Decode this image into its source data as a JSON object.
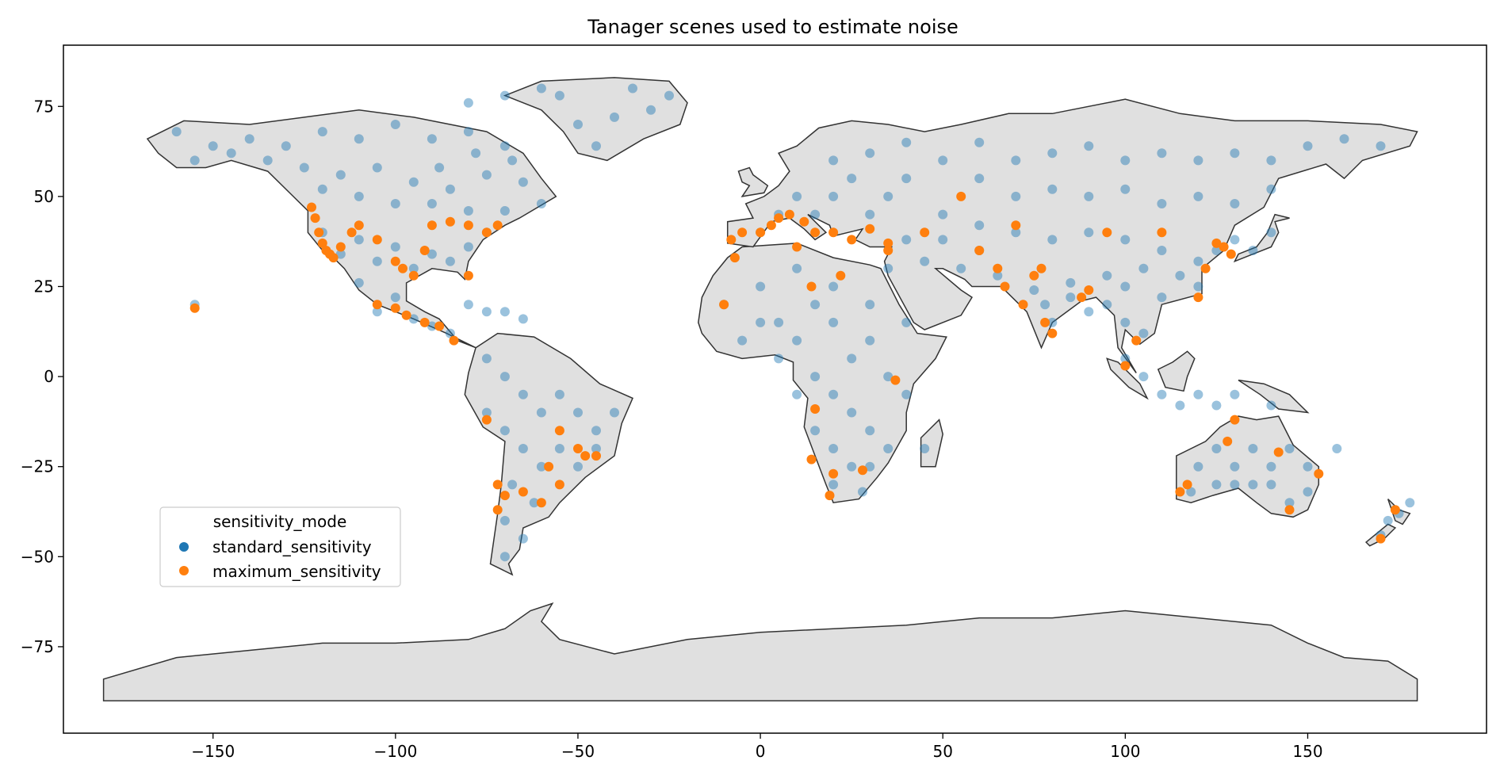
{
  "figure": {
    "title": "Tanager scenes used to estimate noise"
  },
  "chart_data": {
    "type": "scatter",
    "title": "Tanager scenes used to estimate noise",
    "xlabel": "",
    "ylabel": "",
    "xlim": [
      -191,
      199
    ],
    "ylim": [
      -99,
      92
    ],
    "x_ticks": [
      -150,
      -100,
      -50,
      0,
      50,
      100,
      150
    ],
    "y_ticks": [
      75,
      50,
      25,
      0,
      -25,
      -50,
      -75
    ],
    "x_tick_labels": [
      "−150",
      "−100",
      "−50",
      "0",
      "50",
      "100",
      "150"
    ],
    "y_tick_labels": [
      "75",
      "50",
      "25",
      "0",
      "−25",
      "−50",
      "−75"
    ],
    "grid": false,
    "basemap": {
      "fill": "#e0e0e0",
      "edge": "#333333"
    },
    "legend": {
      "title": "sensitivity_mode",
      "placement": "lower-left",
      "entries": [
        {
          "label": "standard_sensitivity",
          "color": "#1f77b4"
        },
        {
          "label": "maximum_sensitivity",
          "color": "#ff7f0e"
        }
      ]
    },
    "series": [
      {
        "name": "standard_sensitivity",
        "color": "#1f77b4",
        "opacity": 0.45,
        "points": [
          [
            -160,
            68
          ],
          [
            -150,
            64
          ],
          [
            -140,
            66
          ],
          [
            -130,
            64
          ],
          [
            -120,
            68
          ],
          [
            -110,
            66
          ],
          [
            -100,
            70
          ],
          [
            -90,
            66
          ],
          [
            -80,
            68
          ],
          [
            -70,
            64
          ],
          [
            -125,
            58
          ],
          [
            -115,
            56
          ],
          [
            -105,
            58
          ],
          [
            -95,
            54
          ],
          [
            -85,
            52
          ],
          [
            -75,
            56
          ],
          [
            -65,
            54
          ],
          [
            -135,
            60
          ],
          [
            -145,
            62
          ],
          [
            -155,
            60
          ],
          [
            -120,
            52
          ],
          [
            -110,
            50
          ],
          [
            -100,
            48
          ],
          [
            -90,
            48
          ],
          [
            -80,
            46
          ],
          [
            -70,
            46
          ],
          [
            -60,
            48
          ],
          [
            -68,
            60
          ],
          [
            -78,
            62
          ],
          [
            -88,
            58
          ],
          [
            -50,
            70
          ],
          [
            -40,
            72
          ],
          [
            -30,
            74
          ],
          [
            -45,
            64
          ],
          [
            -35,
            80
          ],
          [
            -55,
            78
          ],
          [
            -25,
            78
          ],
          [
            -60,
            80
          ],
          [
            -70,
            78
          ],
          [
            -80,
            76
          ],
          [
            -120,
            40
          ],
          [
            -110,
            38
          ],
          [
            -100,
            36
          ],
          [
            -90,
            34
          ],
          [
            -80,
            36
          ],
          [
            -115,
            34
          ],
          [
            -105,
            32
          ],
          [
            -95,
            30
          ],
          [
            -85,
            32
          ],
          [
            -75,
            40
          ],
          [
            -110,
            26
          ],
          [
            -100,
            22
          ],
          [
            -105,
            18
          ],
          [
            -95,
            16
          ],
          [
            -90,
            14
          ],
          [
            -85,
            12
          ],
          [
            -80,
            20
          ],
          [
            -75,
            18
          ],
          [
            -70,
            18
          ],
          [
            -65,
            16
          ],
          [
            -75,
            5
          ],
          [
            -70,
            0
          ],
          [
            -65,
            -5
          ],
          [
            -60,
            -10
          ],
          [
            -55,
            -5
          ],
          [
            -50,
            -10
          ],
          [
            -45,
            -15
          ],
          [
            -40,
            -10
          ],
          [
            -65,
            -20
          ],
          [
            -60,
            -25
          ],
          [
            -55,
            -20
          ],
          [
            -50,
            -25
          ],
          [
            -45,
            -20
          ],
          [
            -70,
            -15
          ],
          [
            -75,
            -10
          ],
          [
            -68,
            -30
          ],
          [
            -62,
            -35
          ],
          [
            -70,
            -40
          ],
          [
            -65,
            -45
          ],
          [
            -70,
            -50
          ],
          [
            -10,
            20
          ],
          [
            0,
            25
          ],
          [
            10,
            30
          ],
          [
            20,
            25
          ],
          [
            30,
            20
          ],
          [
            0,
            15
          ],
          [
            10,
            10
          ],
          [
            20,
            15
          ],
          [
            30,
            10
          ],
          [
            40,
            15
          ],
          [
            -5,
            10
          ],
          [
            5,
            5
          ],
          [
            15,
            0
          ],
          [
            25,
            5
          ],
          [
            35,
            0
          ],
          [
            20,
            -5
          ],
          [
            25,
            -10
          ],
          [
            30,
            -15
          ],
          [
            20,
            -20
          ],
          [
            25,
            -25
          ],
          [
            30,
            -25
          ],
          [
            20,
            -30
          ],
          [
            28,
            -32
          ],
          [
            15,
            -15
          ],
          [
            35,
            -20
          ],
          [
            45,
            -20
          ],
          [
            40,
            -5
          ],
          [
            10,
            -5
          ],
          [
            5,
            15
          ],
          [
            15,
            20
          ],
          [
            0,
            40
          ],
          [
            5,
            45
          ],
          [
            10,
            50
          ],
          [
            20,
            50
          ],
          [
            25,
            55
          ],
          [
            15,
            45
          ],
          [
            30,
            45
          ],
          [
            35,
            50
          ],
          [
            40,
            55
          ],
          [
            20,
            60
          ],
          [
            30,
            62
          ],
          [
            40,
            65
          ],
          [
            50,
            60
          ],
          [
            60,
            65
          ],
          [
            70,
            60
          ],
          [
            80,
            62
          ],
          [
            90,
            64
          ],
          [
            100,
            60
          ],
          [
            110,
            62
          ],
          [
            120,
            60
          ],
          [
            130,
            62
          ],
          [
            140,
            60
          ],
          [
            150,
            64
          ],
          [
            160,
            66
          ],
          [
            170,
            64
          ],
          [
            60,
            55
          ],
          [
            70,
            50
          ],
          [
            80,
            52
          ],
          [
            90,
            50
          ],
          [
            100,
            52
          ],
          [
            110,
            48
          ],
          [
            120,
            50
          ],
          [
            130,
            48
          ],
          [
            140,
            52
          ],
          [
            50,
            45
          ],
          [
            60,
            42
          ],
          [
            70,
            40
          ],
          [
            80,
            38
          ],
          [
            90,
            40
          ],
          [
            100,
            38
          ],
          [
            110,
            35
          ],
          [
            120,
            32
          ],
          [
            115,
            28
          ],
          [
            105,
            30
          ],
          [
            95,
            28
          ],
          [
            85,
            26
          ],
          [
            75,
            24
          ],
          [
            65,
            28
          ],
          [
            55,
            30
          ],
          [
            45,
            32
          ],
          [
            35,
            30
          ],
          [
            40,
            38
          ],
          [
            50,
            38
          ],
          [
            60,
            35
          ],
          [
            78,
            20
          ],
          [
            80,
            15
          ],
          [
            85,
            22
          ],
          [
            90,
            18
          ],
          [
            100,
            15
          ],
          [
            105,
            12
          ],
          [
            95,
            20
          ],
          [
            100,
            25
          ],
          [
            110,
            22
          ],
          [
            120,
            25
          ],
          [
            125,
            35
          ],
          [
            130,
            38
          ],
          [
            135,
            35
          ],
          [
            140,
            40
          ],
          [
            100,
            5
          ],
          [
            105,
            0
          ],
          [
            110,
            -5
          ],
          [
            115,
            -8
          ],
          [
            120,
            -5
          ],
          [
            125,
            -8
          ],
          [
            130,
            -5
          ],
          [
            140,
            -8
          ],
          [
            125,
            -20
          ],
          [
            130,
            -25
          ],
          [
            135,
            -20
          ],
          [
            140,
            -25
          ],
          [
            145,
            -20
          ],
          [
            150,
            -25
          ],
          [
            120,
            -25
          ],
          [
            125,
            -30
          ],
          [
            130,
            -30
          ],
          [
            135,
            -30
          ],
          [
            140,
            -30
          ],
          [
            145,
            -35
          ],
          [
            150,
            -32
          ],
          [
            118,
            -32
          ],
          [
            172,
            -40
          ],
          [
            175,
            -38
          ],
          [
            178,
            -35
          ],
          [
            170,
            -44
          ],
          [
            -155,
            20
          ],
          [
            158,
            -20
          ]
        ]
      },
      {
        "name": "maximum_sensitivity",
        "color": "#ff7f0e",
        "opacity": 1,
        "points": [
          [
            -123,
            47
          ],
          [
            -122,
            44
          ],
          [
            -121,
            40
          ],
          [
            -120,
            37
          ],
          [
            -119,
            35
          ],
          [
            -118,
            34
          ],
          [
            -117,
            33
          ],
          [
            -115,
            36
          ],
          [
            -112,
            40
          ],
          [
            -110,
            42
          ],
          [
            -105,
            38
          ],
          [
            -100,
            32
          ],
          [
            -98,
            30
          ],
          [
            -95,
            28
          ],
          [
            -92,
            35
          ],
          [
            -90,
            42
          ],
          [
            -85,
            43
          ],
          [
            -80,
            42
          ],
          [
            -75,
            40
          ],
          [
            -72,
            42
          ],
          [
            -105,
            20
          ],
          [
            -100,
            19
          ],
          [
            -97,
            17
          ],
          [
            -92,
            15
          ],
          [
            -88,
            14
          ],
          [
            -84,
            10
          ],
          [
            -80,
            28
          ],
          [
            -155,
            19
          ],
          [
            -75,
            -12
          ],
          [
            -72,
            -30
          ],
          [
            -70,
            -33
          ],
          [
            -72,
            -37
          ],
          [
            -65,
            -32
          ],
          [
            -60,
            -35
          ],
          [
            -58,
            -25
          ],
          [
            -55,
            -30
          ],
          [
            -48,
            -22
          ],
          [
            -45,
            -22
          ],
          [
            -55,
            -15
          ],
          [
            -50,
            -20
          ],
          [
            -8,
            38
          ],
          [
            -5,
            40
          ],
          [
            0,
            40
          ],
          [
            3,
            42
          ],
          [
            5,
            44
          ],
          [
            8,
            45
          ],
          [
            12,
            43
          ],
          [
            15,
            40
          ],
          [
            20,
            40
          ],
          [
            25,
            38
          ],
          [
            30,
            41
          ],
          [
            35,
            35
          ],
          [
            10,
            36
          ],
          [
            -10,
            20
          ],
          [
            -7,
            33
          ],
          [
            14,
            25
          ],
          [
            22,
            28
          ],
          [
            37,
            -1
          ],
          [
            15,
            -9
          ],
          [
            14,
            -23
          ],
          [
            19,
            -33
          ],
          [
            20,
            -27
          ],
          [
            28,
            -26
          ],
          [
            35,
            37
          ],
          [
            45,
            40
          ],
          [
            55,
            50
          ],
          [
            60,
            35
          ],
          [
            65,
            30
          ],
          [
            67,
            25
          ],
          [
            70,
            42
          ],
          [
            72,
            20
          ],
          [
            75,
            28
          ],
          [
            77,
            30
          ],
          [
            80,
            12
          ],
          [
            78,
            15
          ],
          [
            88,
            22
          ],
          [
            90,
            24
          ],
          [
            95,
            40
          ],
          [
            103,
            10
          ],
          [
            100,
            3
          ],
          [
            110,
            40
          ],
          [
            120,
            22
          ],
          [
            125,
            37
          ],
          [
            127,
            36
          ],
          [
            129,
            34
          ],
          [
            122,
            30
          ],
          [
            128,
            -18
          ],
          [
            130,
            -12
          ],
          [
            115,
            -32
          ],
          [
            117,
            -30
          ],
          [
            142,
            -21
          ],
          [
            145,
            -37
          ],
          [
            153,
            -27
          ],
          [
            170,
            -45
          ],
          [
            174,
            -37
          ]
        ]
      }
    ]
  }
}
